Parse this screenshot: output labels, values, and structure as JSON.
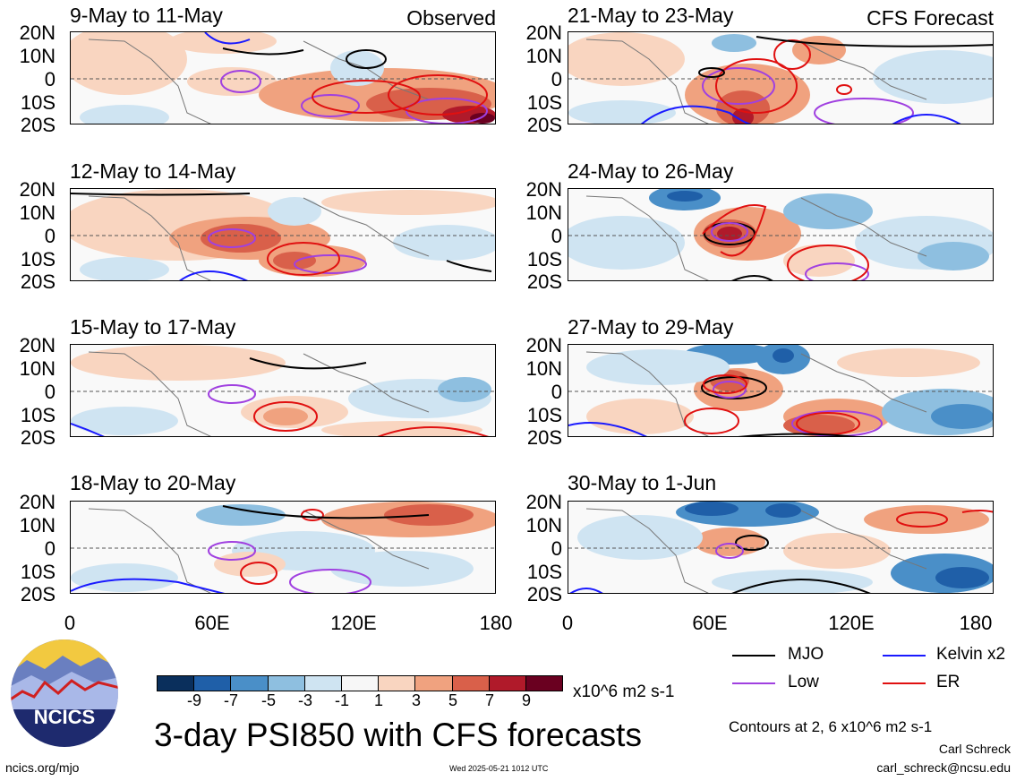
{
  "panels_left": [
    {
      "title": "9-May to 11-May",
      "corner": "Observed"
    },
    {
      "title": "12-May to 14-May",
      "corner": ""
    },
    {
      "title": "15-May to 17-May",
      "corner": ""
    },
    {
      "title": "18-May to 20-May",
      "corner": ""
    }
  ],
  "panels_right": [
    {
      "title": "21-May to 23-May",
      "corner": "CFS Forecast"
    },
    {
      "title": "24-May to 26-May",
      "corner": ""
    },
    {
      "title": "27-May to 29-May",
      "corner": ""
    },
    {
      "title": "30-May to 1-Jun",
      "corner": ""
    }
  ],
  "lat_labels": [
    "20N",
    "10N",
    "0",
    "10S",
    "20S"
  ],
  "lon_labels": [
    "0",
    "60E",
    "120E",
    "180"
  ],
  "legend": {
    "mjo": "MJO",
    "kelvin": "Kelvin x2",
    "low": "Low",
    "er": "ER",
    "colors": {
      "mjo": "#000000",
      "kelvin": "#1a1aff",
      "low": "#a040e0",
      "er": "#e01010"
    }
  },
  "colorbar": {
    "labels": [
      "-9",
      "-7",
      "-5",
      "-3",
      "-1",
      "1",
      "3",
      "5",
      "7",
      "9"
    ],
    "colors": [
      "#0a2f5c",
      "#1f5fa8",
      "#4a8fc8",
      "#8ebfe0",
      "#cfe4f2",
      "#f7f7f7",
      "#f9d5c0",
      "#f0a27f",
      "#d9604a",
      "#b01a2a",
      "#6a0020"
    ],
    "units": "x10^6 m2 s-1"
  },
  "logo": {
    "text": "NCICS"
  },
  "title": "3-day PSI850 with CFS forecasts",
  "contour_note": "Contours at 2, 6 x10^6 m2 s-1",
  "author": "Carl Schreck",
  "email": "carl_schreck@ncsu.edu",
  "url": "ncics.org/mjo",
  "timestamp": "Wed 2025-05-21 1012 UTC"
}
